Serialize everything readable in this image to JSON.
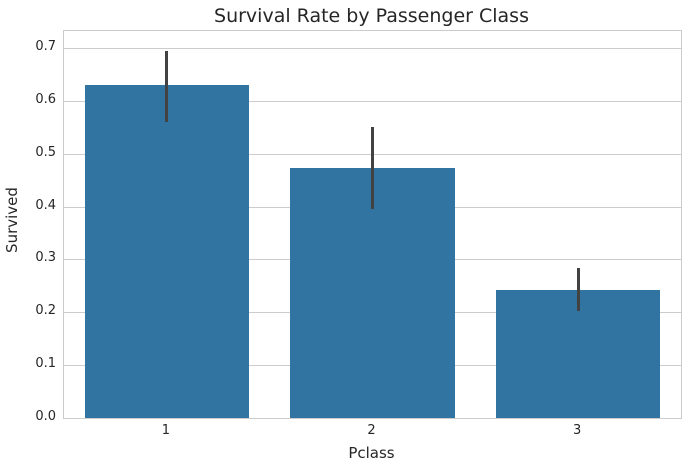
{
  "chart_data": {
    "type": "bar",
    "title": "Survival Rate by Passenger Class",
    "xlabel": "Pclass",
    "ylabel": "Survived",
    "categories": [
      "1",
      "2",
      "3"
    ],
    "values": [
      0.63,
      0.473,
      0.242
    ],
    "error_bars": [
      [
        0.56,
        0.695
      ],
      [
        0.395,
        0.55
      ],
      [
        0.202,
        0.284
      ]
    ],
    "yticks": [
      "0.0",
      "0.1",
      "0.2",
      "0.3",
      "0.4",
      "0.5",
      "0.6",
      "0.7"
    ],
    "ylim": [
      0,
      0.732
    ],
    "bar_width_frac": 0.8,
    "grid": "horizontal-only",
    "legend": "none",
    "colors": {
      "bar": "#3274a1",
      "error_bar": "#424242",
      "grid": "#cccccc",
      "spine": "#cccccc",
      "text": "#262626",
      "background": "#ffffff"
    }
  }
}
